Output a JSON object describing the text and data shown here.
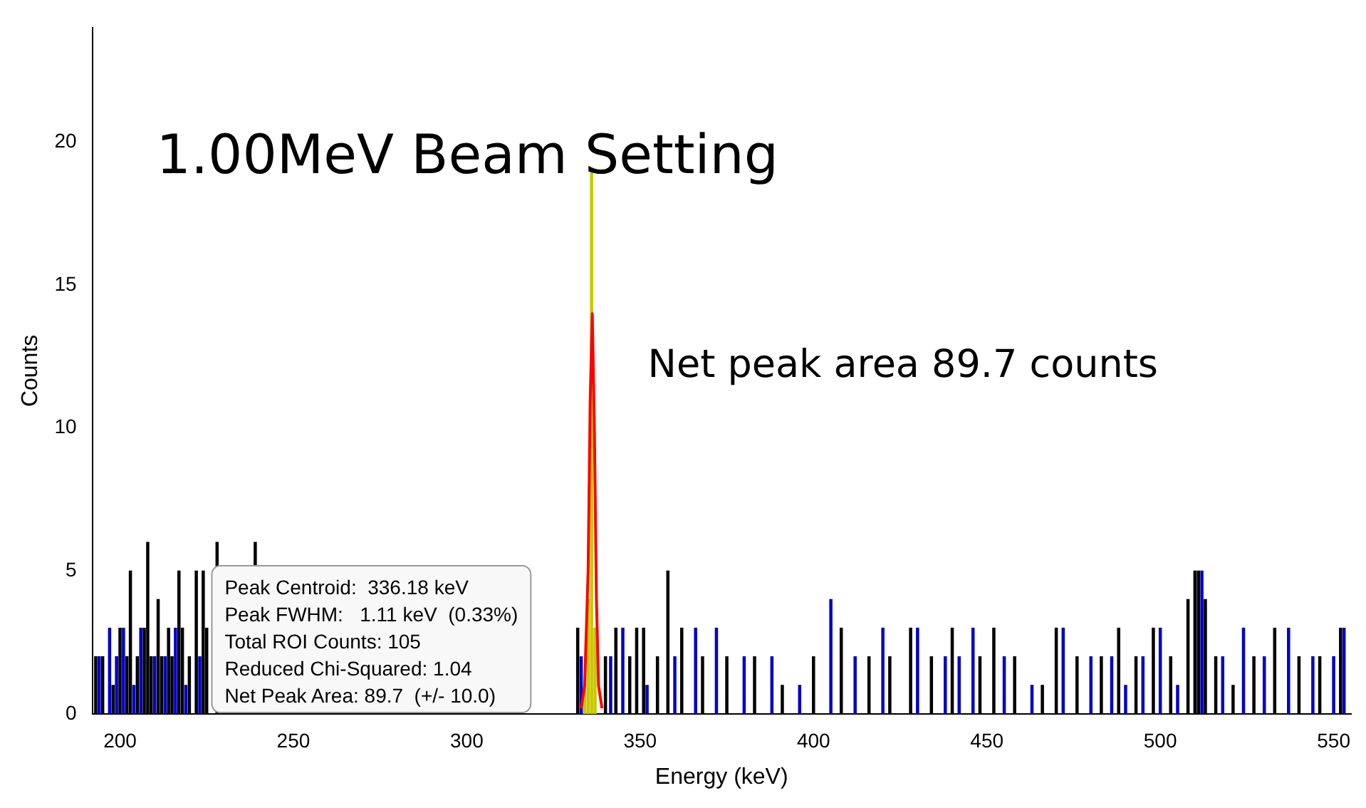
{
  "chart_data": {
    "type": "bar",
    "title": "1.00MeV Beam Setting",
    "xlabel": "Energy (keV)",
    "ylabel": "Counts",
    "xlim": [
      192,
      555
    ],
    "xticks": [
      200,
      250,
      300,
      350,
      400,
      450,
      500,
      550
    ],
    "ylim": [
      0,
      24
    ],
    "yticks": [
      0,
      5,
      10,
      15,
      20
    ],
    "grid": false,
    "legend": false,
    "annotations": [
      "Net peak area 89.7 counts",
      "Peak Centroid:  336.18 keV",
      "Peak FWHM:   1.11 keV  (0.33%)",
      "Total ROI Counts: 105",
      "Reduced Chi-Squared: 1.04",
      "Net Peak Area: 89.7  (+/- 10.0)"
    ],
    "series": [
      {
        "color": "#0000c8",
        "x": [
          194,
          197,
          199,
          201,
          204,
          206,
          210,
          213,
          216,
          219,
          223,
          333,
          341.5,
          345,
          352,
          360,
          366,
          372,
          380,
          388,
          396,
          405,
          412,
          420,
          430,
          438,
          442,
          446,
          455,
          463,
          472,
          480,
          486,
          490,
          495,
          500,
          505,
          512,
          518,
          524,
          530,
          537,
          544,
          550,
          553
        ],
        "values": [
          2,
          3,
          2,
          3,
          1,
          3,
          2,
          2,
          3,
          1,
          2,
          2,
          2,
          3,
          1,
          2,
          3,
          3,
          2,
          2,
          1,
          4,
          2,
          3,
          3,
          2,
          2,
          3,
          2,
          1,
          3,
          2,
          2,
          1,
          2,
          3,
          1,
          5,
          2,
          3,
          2,
          3,
          2,
          2,
          3
        ]
      },
      {
        "color": "#000000",
        "x": [
          193,
          195,
          198,
          200,
          202,
          203,
          205,
          207,
          208,
          209,
          211,
          212,
          214,
          215,
          217,
          218,
          220,
          222,
          224,
          225,
          228,
          239,
          332,
          340,
          343,
          347,
          349,
          351,
          355,
          358,
          362,
          368,
          375,
          383,
          391,
          400,
          408,
          416,
          422,
          428,
          434,
          440,
          448,
          452,
          458,
          466,
          470,
          476,
          483,
          488,
          493,
          498,
          503,
          508,
          510,
          511,
          513,
          516,
          521,
          527,
          533,
          540,
          546,
          552
        ],
        "values": [
          2,
          2,
          1,
          3,
          2,
          5,
          2,
          3,
          6,
          2,
          4,
          2,
          3,
          2,
          5,
          3,
          2,
          5,
          5,
          3,
          6,
          6,
          3,
          2,
          3,
          2,
          3,
          3,
          2,
          5,
          3,
          2,
          2,
          2,
          1,
          2,
          3,
          2,
          2,
          3,
          2,
          3,
          2,
          3,
          2,
          1,
          3,
          2,
          2,
          3,
          2,
          3,
          2,
          4,
          5,
          5,
          4,
          2,
          1,
          2,
          3,
          2,
          2,
          3
        ]
      },
      {
        "color": "#c8c800",
        "x": [
          334,
          335,
          336,
          337
        ],
        "values": [
          1,
          4,
          19,
          3
        ]
      },
      {
        "type": "line",
        "color": "#ff0000",
        "x": [
          333,
          334,
          335,
          335.6,
          336.2,
          336.8,
          337.4,
          338,
          339
        ],
        "values": [
          0.2,
          1,
          5,
          11,
          14,
          10,
          4,
          1,
          0.2
        ]
      }
    ]
  }
}
